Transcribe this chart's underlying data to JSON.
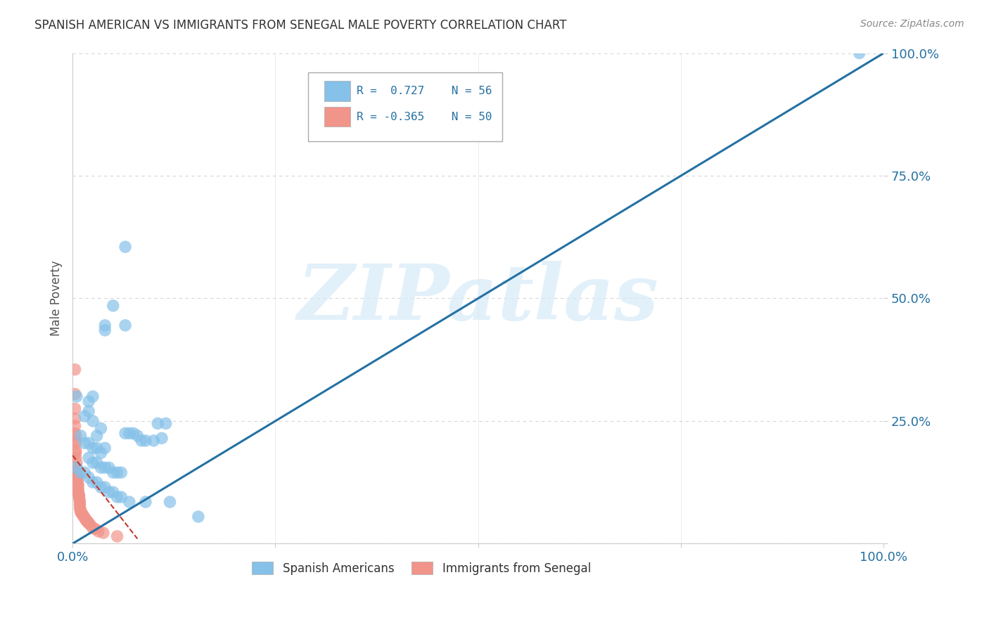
{
  "title": "SPANISH AMERICAN VS IMMIGRANTS FROM SENEGAL MALE POVERTY CORRELATION CHART",
  "source": "Source: ZipAtlas.com",
  "ylabel": "Male Poverty",
  "xlim": [
    0,
    1
  ],
  "ylim": [
    0,
    1
  ],
  "watermark": "ZIPatlas",
  "legend_blue_label": "Spanish Americans",
  "legend_pink_label": "Immigrants from Senegal",
  "blue_color": "#85c1e9",
  "pink_color": "#f1948a",
  "line_blue_color": "#2471a3",
  "line_pink_color": "#c0392b",
  "background_color": "#ffffff",
  "grid_color": "#cccccc",
  "title_color": "#333333",
  "axis_label_color": "#2471a3",
  "blue_scatter": [
    [
      0.005,
      0.3
    ],
    [
      0.02,
      0.27
    ],
    [
      0.02,
      0.29
    ],
    [
      0.015,
      0.26
    ],
    [
      0.025,
      0.3
    ],
    [
      0.025,
      0.25
    ],
    [
      0.03,
      0.22
    ],
    [
      0.035,
      0.235
    ],
    [
      0.01,
      0.22
    ],
    [
      0.015,
      0.205
    ],
    [
      0.02,
      0.205
    ],
    [
      0.025,
      0.195
    ],
    [
      0.03,
      0.195
    ],
    [
      0.035,
      0.185
    ],
    [
      0.04,
      0.195
    ],
    [
      0.02,
      0.175
    ],
    [
      0.025,
      0.165
    ],
    [
      0.03,
      0.165
    ],
    [
      0.035,
      0.155
    ],
    [
      0.04,
      0.155
    ],
    [
      0.045,
      0.155
    ],
    [
      0.05,
      0.145
    ],
    [
      0.055,
      0.145
    ],
    [
      0.06,
      0.145
    ],
    [
      0.065,
      0.225
    ],
    [
      0.07,
      0.225
    ],
    [
      0.075,
      0.225
    ],
    [
      0.08,
      0.22
    ],
    [
      0.085,
      0.21
    ],
    [
      0.09,
      0.21
    ],
    [
      0.1,
      0.21
    ],
    [
      0.11,
      0.215
    ],
    [
      0.005,
      0.155
    ],
    [
      0.01,
      0.145
    ],
    [
      0.015,
      0.145
    ],
    [
      0.02,
      0.135
    ],
    [
      0.025,
      0.125
    ],
    [
      0.03,
      0.125
    ],
    [
      0.035,
      0.115
    ],
    [
      0.04,
      0.115
    ],
    [
      0.045,
      0.105
    ],
    [
      0.05,
      0.105
    ],
    [
      0.055,
      0.095
    ],
    [
      0.06,
      0.095
    ],
    [
      0.07,
      0.085
    ],
    [
      0.09,
      0.085
    ],
    [
      0.12,
      0.085
    ],
    [
      0.155,
      0.055
    ],
    [
      0.04,
      0.445
    ],
    [
      0.05,
      0.485
    ],
    [
      0.065,
      0.445
    ],
    [
      0.065,
      0.605
    ],
    [
      0.04,
      0.435
    ],
    [
      0.105,
      0.245
    ],
    [
      0.115,
      0.245
    ],
    [
      0.97,
      1.0
    ]
  ],
  "pink_scatter": [
    [
      0.003,
      0.355
    ],
    [
      0.003,
      0.305
    ],
    [
      0.003,
      0.275
    ],
    [
      0.003,
      0.255
    ],
    [
      0.003,
      0.24
    ],
    [
      0.003,
      0.225
    ],
    [
      0.004,
      0.22
    ],
    [
      0.004,
      0.21
    ],
    [
      0.004,
      0.205
    ],
    [
      0.004,
      0.19
    ],
    [
      0.004,
      0.185
    ],
    [
      0.004,
      0.175
    ],
    [
      0.005,
      0.165
    ],
    [
      0.005,
      0.155
    ],
    [
      0.005,
      0.152
    ],
    [
      0.005,
      0.148
    ],
    [
      0.005,
      0.14
    ],
    [
      0.006,
      0.138
    ],
    [
      0.006,
      0.132
    ],
    [
      0.006,
      0.128
    ],
    [
      0.006,
      0.122
    ],
    [
      0.007,
      0.12
    ],
    [
      0.007,
      0.112
    ],
    [
      0.007,
      0.108
    ],
    [
      0.007,
      0.102
    ],
    [
      0.008,
      0.1
    ],
    [
      0.008,
      0.098
    ],
    [
      0.008,
      0.092
    ],
    [
      0.009,
      0.088
    ],
    [
      0.009,
      0.082
    ],
    [
      0.009,
      0.078
    ],
    [
      0.009,
      0.072
    ],
    [
      0.01,
      0.068
    ],
    [
      0.01,
      0.065
    ],
    [
      0.011,
      0.062
    ],
    [
      0.012,
      0.06
    ],
    [
      0.013,
      0.058
    ],
    [
      0.014,
      0.055
    ],
    [
      0.015,
      0.052
    ],
    [
      0.016,
      0.05
    ],
    [
      0.017,
      0.048
    ],
    [
      0.018,
      0.045
    ],
    [
      0.019,
      0.044
    ],
    [
      0.02,
      0.042
    ],
    [
      0.022,
      0.038
    ],
    [
      0.025,
      0.032
    ],
    [
      0.028,
      0.03
    ],
    [
      0.032,
      0.025
    ],
    [
      0.038,
      0.022
    ],
    [
      0.055,
      0.015
    ]
  ],
  "blue_line_x": [
    0.0,
    1.0
  ],
  "blue_line_y": [
    0.0,
    1.0
  ],
  "pink_line_x": [
    0.0,
    0.08
  ],
  "pink_line_y": [
    0.18,
    0.01
  ]
}
